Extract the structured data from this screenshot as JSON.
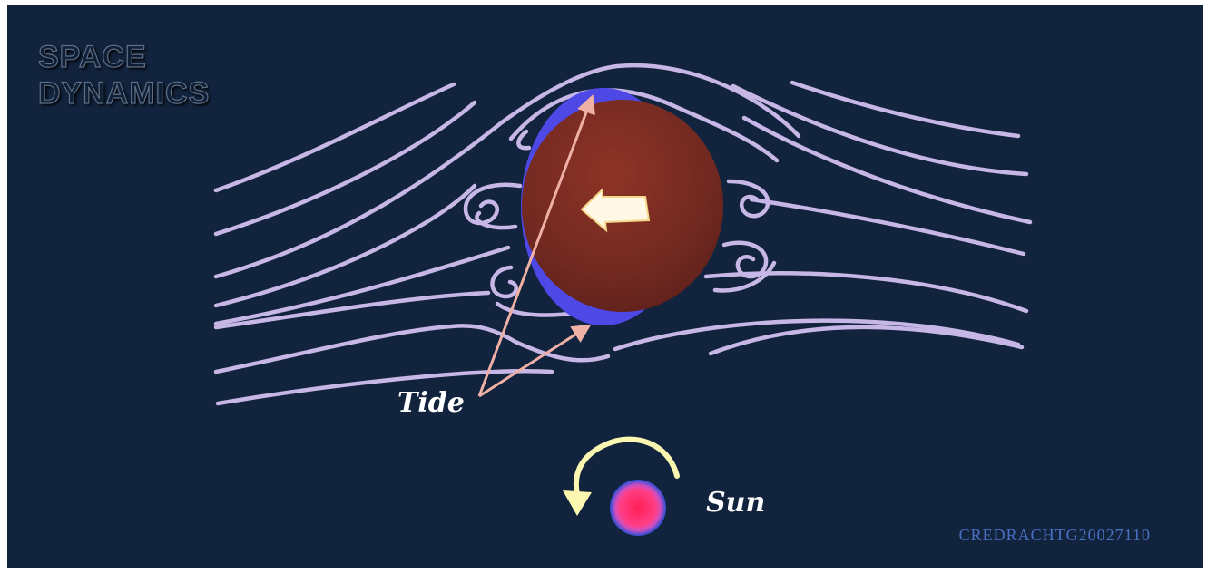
{
  "title_lines": [
    "SPACE",
    "DYNAMICS"
  ],
  "labels": {
    "tide": "Tide",
    "sun": "Sun"
  },
  "credit": "CREDRACHTG20027110",
  "colors": {
    "background": "#12233d",
    "flow_lines": "#c7b7e6",
    "planet": "#7a2a22",
    "tidal_bulge": "#4d48e6",
    "pointer_arrows": "#efb0a6",
    "rotation_arrow": "#fbf6b0",
    "sun_core": "#ff1f6a",
    "sun_ring": "#2b4fd6"
  },
  "icons": {
    "motion": "left-arrow-icon",
    "rotation": "counter-clockwise-arrow-icon"
  }
}
